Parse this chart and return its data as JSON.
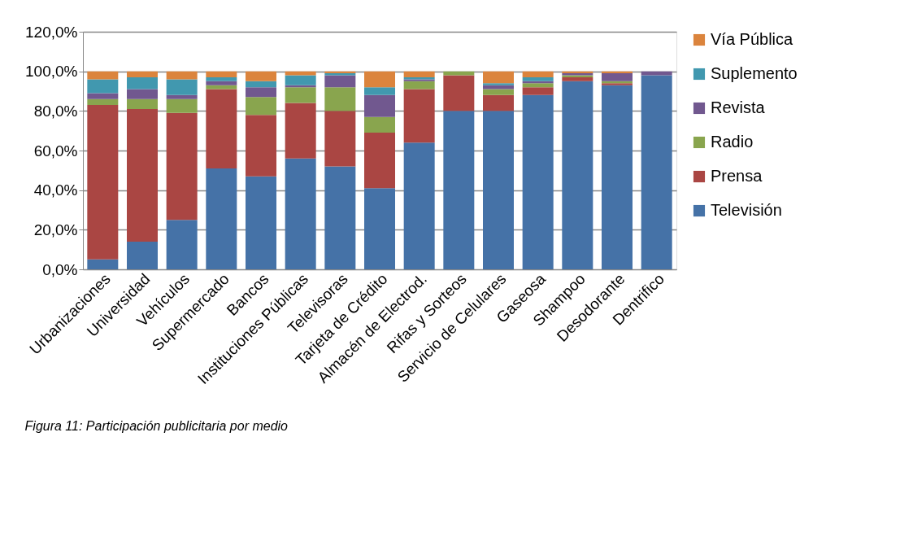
{
  "chart_data": {
    "type": "bar",
    "stacked": true,
    "categories": [
      "Urbanizaciones",
      "Universidad",
      "Vehículos",
      "Supermercado",
      "Bancos",
      "Instituciones Públicas",
      "Televisoras",
      "Tarjeta de Crédito",
      "Almacén de Electrod.",
      "Rifas y Sorteos",
      "Servicio de Celulares",
      "Gaseosa",
      "Shampoo",
      "Desodorante",
      "Dentrifico"
    ],
    "series": [
      {
        "name": "Televisión",
        "color": "#4572a7",
        "values": [
          5,
          14,
          25,
          51,
          47,
          56,
          52,
          41,
          64,
          80,
          80,
          88,
          95,
          93,
          98
        ]
      },
      {
        "name": "Prensa",
        "color": "#aa4643",
        "values": [
          78,
          67,
          54,
          40,
          31,
          28,
          28,
          28,
          27,
          18,
          8,
          4,
          2,
          1,
          0
        ]
      },
      {
        "name": "Radio",
        "color": "#89a54e",
        "values": [
          3,
          5,
          7,
          2,
          9,
          8,
          12,
          8,
          4,
          2,
          3,
          2,
          1,
          1,
          0
        ]
      },
      {
        "name": "Revista",
        "color": "#71588f",
        "values": [
          3,
          5,
          2,
          2,
          5,
          1,
          6,
          11,
          1,
          0,
          2,
          1,
          1,
          4,
          2
        ]
      },
      {
        "name": "Suplemento",
        "color": "#4198af",
        "values": [
          7,
          6,
          8,
          2,
          3,
          5,
          1,
          4,
          1,
          0,
          1,
          2,
          0,
          0,
          0
        ]
      },
      {
        "name": "Vía Pública",
        "color": "#db843d",
        "values": [
          4,
          3,
          4,
          3,
          5,
          2,
          1,
          8,
          3,
          0,
          6,
          3,
          1,
          1,
          0
        ]
      }
    ],
    "ylim": [
      0,
      120
    ],
    "yticks": [
      {
        "value": 0,
        "label": "0,0%"
      },
      {
        "value": 20,
        "label": "20,0%"
      },
      {
        "value": 40,
        "label": "40,0%"
      },
      {
        "value": 60,
        "label": "60,0%"
      },
      {
        "value": 80,
        "label": "80,0%"
      },
      {
        "value": 100,
        "label": "100,0%"
      },
      {
        "value": 120,
        "label": "120,0%"
      }
    ],
    "grid": "y",
    "legend": "right",
    "annotations": [
      "Figura 11: Participación publicitaria por medio"
    ]
  }
}
